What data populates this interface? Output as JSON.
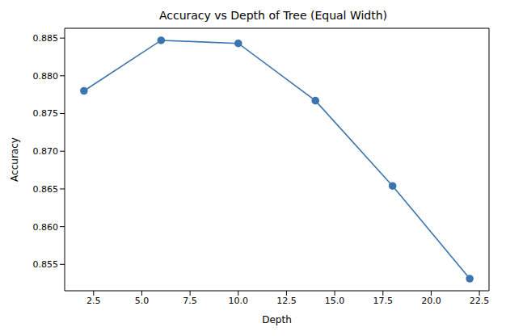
{
  "chart_data": {
    "type": "line",
    "title": "Accuracy vs Depth of Tree (Equal Width)",
    "x_label": "Depth",
    "y_label": "Accuracy",
    "x": [
      2,
      6,
      10,
      14,
      18,
      22
    ],
    "values": [
      0.878,
      0.8847,
      0.8843,
      0.8767,
      0.8654,
      0.8531
    ],
    "color": "#3b75af",
    "marker": "circle",
    "line_style": "solid",
    "xlim": [
      1,
      23
    ],
    "ylim": [
      0.8515,
      0.8863
    ],
    "xticks": [
      2.5,
      {
        "value": 5,
        "label": "5.0"
      },
      7.5,
      {
        "value": 10,
        "label": "10.0"
      },
      12.5,
      {
        "value": 15,
        "label": "15.0"
      },
      17.5,
      {
        "value": 20,
        "label": "20.0"
      },
      22.5
    ],
    "yticks": [
      0.855,
      {
        "value": 0.86,
        "label": "0.860"
      },
      0.865,
      {
        "value": 0.87,
        "label": "0.870"
      },
      0.875,
      {
        "value": 0.88,
        "label": "0.880"
      },
      0.885
    ],
    "grid": false
  }
}
